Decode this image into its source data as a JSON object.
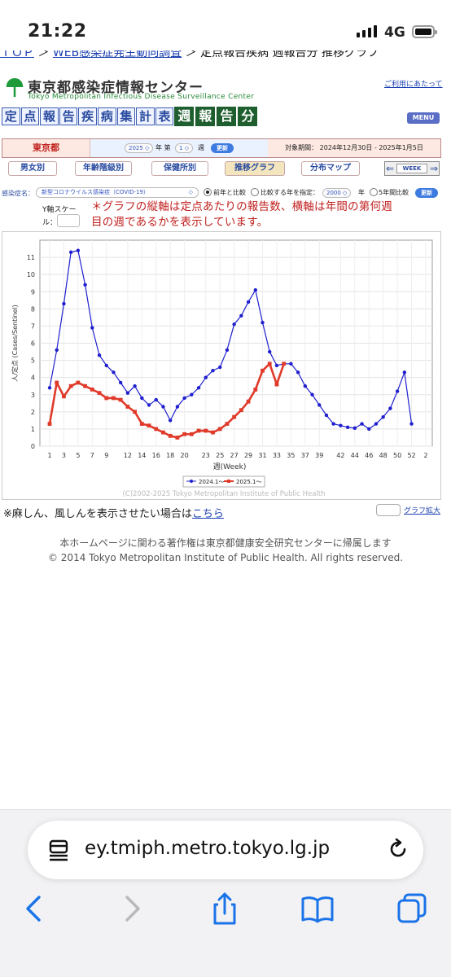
{
  "status_bar": {
    "time": "21:22",
    "network": "4G"
  },
  "breadcrumb": {
    "link1": "ＴＯＰ",
    "sep1": " ＞ ",
    "link2": "WEB感染症発生動向調査",
    "rest": " ＞ 定点報告疾病 週報告分 推移グラフ"
  },
  "header": {
    "title": "東京都感染症情報センター",
    "subtitle": "Tokyo Metropolitan Infectious Disease Surveillance Center",
    "usage_link": "ご利用にあたって",
    "banner_chars": [
      "定",
      "点",
      "報",
      "告",
      "疾",
      "病",
      "集",
      "計",
      "表"
    ],
    "banner_green": [
      "週",
      "報",
      "告",
      "分"
    ],
    "menu_label": "MENU"
  },
  "selector": {
    "prefecture": "東京都",
    "year": "2025",
    "year_label": "年 第",
    "week": "1",
    "week_label": "週",
    "update": "更新",
    "period": "対象期間： 2024年12月30日 - 2025年1月5日"
  },
  "tabs": [
    "男女別",
    "年齢階級別",
    "保健所別",
    "推移グラフ",
    "分布マップ"
  ],
  "week_control": {
    "label": "WEEK",
    "prev": "⇐",
    "next": "⇒"
  },
  "disease_row": {
    "label": "感染症名：",
    "selected": "新型コロナウイルス感染症（COVID-19）",
    "opt1": "前年と比較",
    "opt2": "比較する年を指定：",
    "compare_year": "2000",
    "year_suffix": "年",
    "opt3": "5年間比較",
    "update": "更新"
  },
  "y_scale": {
    "label1": "Y軸スケー",
    "label2": "ル："
  },
  "note": "＊グラフの縦軸は定点あたりの報告数、横軸は年間の第何週目の週であるかを表示しています。",
  "chart_data": {
    "type": "line",
    "xlabel": "週(Week)",
    "ylabel": "人/定点 (Cases/Sentinel)",
    "ylim": [
      0,
      12
    ],
    "yticks": [
      "0",
      "1",
      "2",
      "3",
      "4",
      "5",
      "6",
      "7",
      "8",
      "9",
      "10",
      "11"
    ],
    "xticks": [
      "1",
      "3",
      "5",
      "7",
      "9",
      "12",
      "14",
      "16",
      "18",
      "20",
      "23",
      "25",
      "27",
      "29",
      "31",
      "33",
      "35",
      "37",
      "39",
      "42",
      "44",
      "46",
      "48",
      "50",
      "52",
      "2"
    ],
    "legend_placement": "bottom-center",
    "copyright": "(C)2002-2025 Tokyo Metropolitan Institute of Public Health",
    "series": [
      {
        "name": "2024.1～",
        "color": "#1f1fcf",
        "values": [
          3.4,
          5.6,
          8.3,
          11.3,
          11.4,
          9.4,
          6.9,
          5.3,
          4.7,
          4.3,
          3.7,
          3.1,
          3.5,
          2.8,
          2.4,
          2.7,
          2.3,
          1.5,
          2.3,
          2.8,
          3.0,
          3.4,
          4.0,
          4.4,
          4.6,
          5.6,
          7.1,
          7.6,
          8.4,
          9.1,
          7.2,
          5.5,
          4.7,
          4.8,
          4.8,
          4.3,
          3.5,
          3.0,
          2.4,
          1.8,
          1.3,
          1.2,
          1.1,
          1.05,
          1.3,
          1.0,
          1.3,
          1.7,
          2.2,
          3.2,
          4.3,
          1.3
        ]
      },
      {
        "name": "2025.1～",
        "color": "#e03a2a",
        "values": [
          1.3,
          3.7,
          2.9,
          3.5,
          3.7,
          3.5,
          3.3,
          3.1,
          2.8,
          2.8,
          2.7,
          2.3,
          2.0,
          1.3,
          1.2,
          1.0,
          0.8,
          0.6,
          0.5,
          0.7,
          0.7,
          0.9,
          0.9,
          0.8,
          1.0,
          1.3,
          1.7,
          2.1,
          2.6,
          3.3,
          4.4,
          4.8,
          3.6,
          4.8
        ]
      }
    ]
  },
  "bottom": {
    "measles_text": "※麻しん、風しんを表示させたい場合は",
    "measles_link": "こちら",
    "graph_expand": "グラフ拡大",
    "copyright_ja": "本ホームページに関わる著作権は東京都健康安全研究センターに帰属します",
    "copyright_en": "© 2014 Tokyo Metropolitan Institute of Public Health. All rights reserved."
  },
  "browser": {
    "url": "ey.tmiph.metro.tokyo.lg.jp"
  }
}
